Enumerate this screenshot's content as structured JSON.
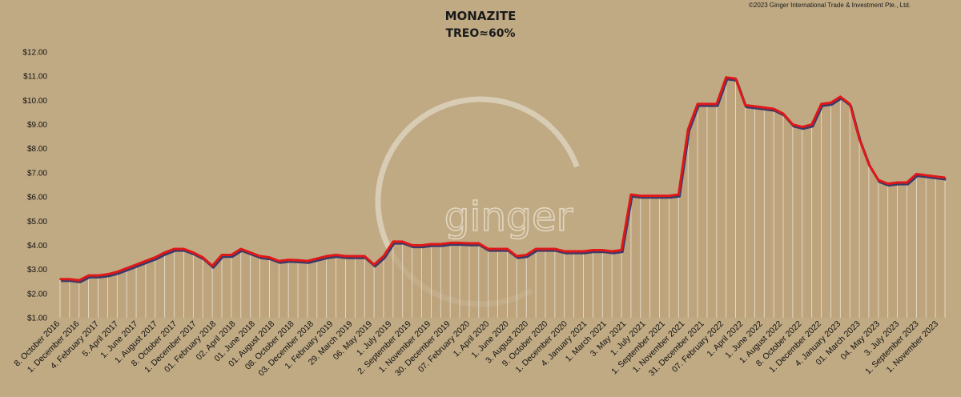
{
  "chart_data": {
    "type": "area",
    "title": "MONAZITE",
    "subtitle": "TREO≈60%",
    "copyright": "©2023 Ginger International Trade & Investment Pte., Ltd.",
    "watermark_text": "ginger",
    "xlabel": "",
    "ylabel": "",
    "ylim": [
      1,
      12
    ],
    "yticks": [
      "$1.00",
      "$2.00",
      "$3.00",
      "$4.00",
      "$5.00",
      "$6.00",
      "$7.00",
      "$8.00",
      "$9.00",
      "$10.00",
      "$11.00",
      "$12.00"
    ],
    "grid": false,
    "legend": "none",
    "colors": {
      "line": "#e01818",
      "shadow": "#3a3a6a",
      "drop_lines": "#ece4d4",
      "area": "#bca27a",
      "background": "#c0aa84"
    },
    "x_labels": [
      "8. October 2016",
      "1. December 2016",
      "4. February 2017",
      "5. April 2017",
      "1. June 2017",
      "1. August 2017",
      "8. October 2017",
      "1. December 2017",
      "01. February 2018",
      "02. April 2018",
      "01. June 2018",
      "01. August 2018",
      "08. October 2018",
      "03. December 2018",
      "1. February 2019",
      "29. March 2019",
      "06. May 2019",
      "1. July 2019",
      "2. September 2019",
      "1. November 2019",
      "30. December 2019",
      "07. February 2020",
      "1. April 2020",
      "1. June 2020",
      "3. August 2020",
      "9. October 2020",
      "1. December 2020",
      "4. January 2021",
      "1. March 2021",
      "3. May 2021",
      "1. July 2021",
      "1. September 2021",
      "1. November 2021",
      "31. December 2021",
      "07. February 2022",
      "1. April 2022",
      "1. June 2022",
      "1. August 2022",
      "8. October 2022",
      "1. December 2022",
      "4. January 2023",
      "01. March 2023",
      "04. May 2023",
      "3. July 2023",
      "1. September 2023",
      "1. November 2023"
    ],
    "values": [
      2.6,
      2.6,
      2.55,
      2.75,
      2.75,
      2.8,
      2.9,
      3.05,
      3.2,
      3.35,
      3.5,
      3.7,
      3.85,
      3.85,
      3.7,
      3.5,
      3.15,
      3.6,
      3.6,
      3.85,
      3.7,
      3.55,
      3.5,
      3.35,
      3.4,
      3.38,
      3.35,
      3.45,
      3.55,
      3.6,
      3.55,
      3.55,
      3.55,
      3.2,
      3.55,
      4.15,
      4.15,
      4.0,
      4.0,
      4.05,
      4.05,
      4.1,
      4.1,
      4.08,
      4.08,
      3.85,
      3.85,
      3.85,
      3.55,
      3.6,
      3.85,
      3.85,
      3.85,
      3.75,
      3.75,
      3.75,
      3.8,
      3.8,
      3.75,
      3.8,
      6.1,
      6.05,
      6.05,
      6.05,
      6.05,
      6.1,
      8.8,
      9.85,
      9.85,
      9.85,
      10.95,
      10.9,
      9.8,
      9.75,
      9.7,
      9.65,
      9.45,
      9.0,
      8.9,
      9.0,
      9.85,
      9.9,
      10.15,
      9.85,
      8.4,
      7.35,
      6.7,
      6.55,
      6.6,
      6.6,
      6.95,
      6.9,
      6.85,
      6.8
    ]
  }
}
